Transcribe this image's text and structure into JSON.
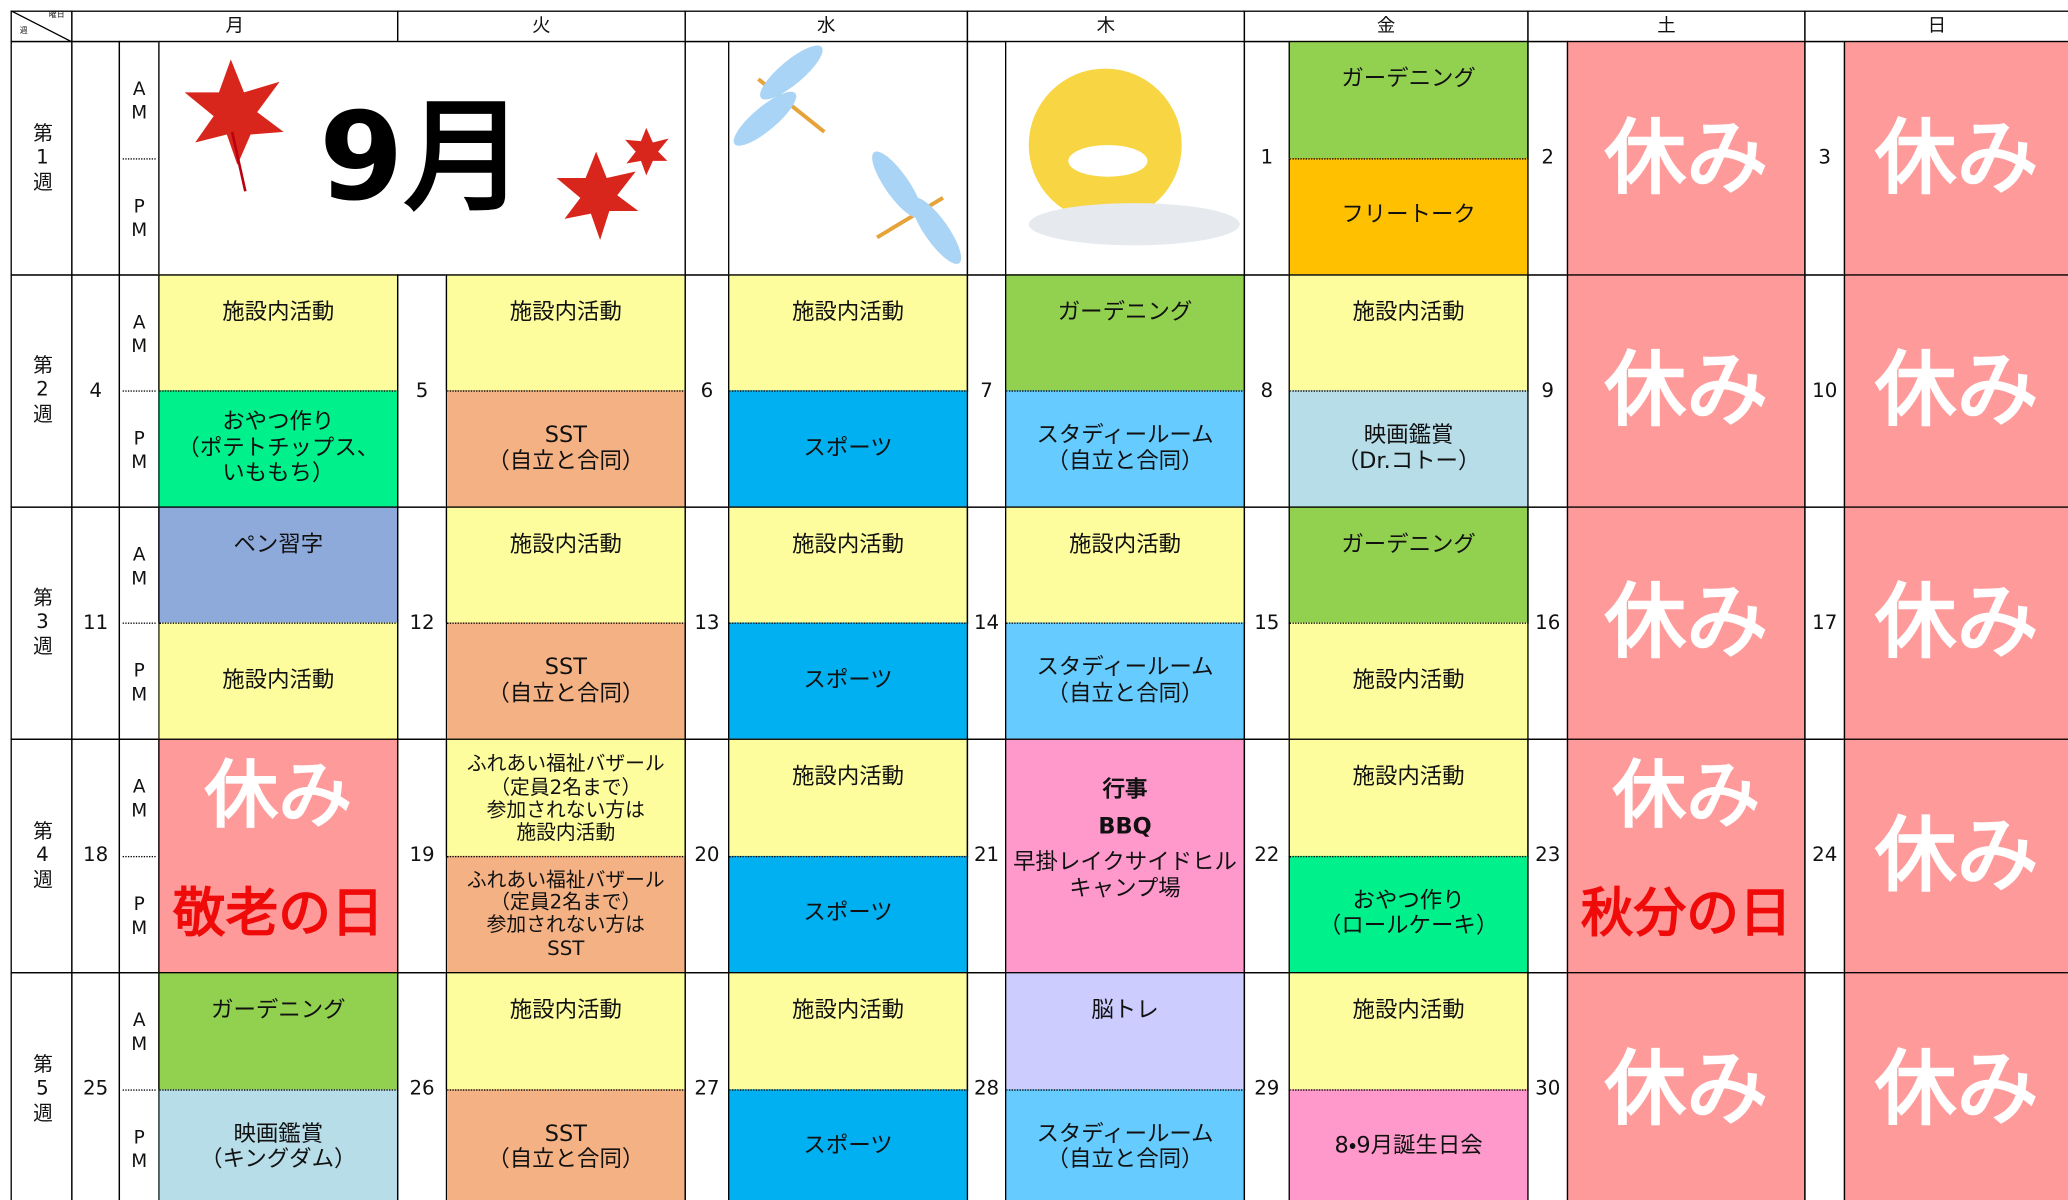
{
  "header": {
    "corner_day": "曜日",
    "corner_week": "週",
    "days": [
      "月",
      "火",
      "水",
      "木",
      "金",
      "土",
      "日"
    ]
  },
  "labels": {
    "am": "AM",
    "pm": "PM"
  },
  "weeks": [
    {
      "label": "第1週",
      "banner": "9月",
      "days": [
        null,
        null,
        null,
        null,
        {
          "day": 1,
          "am": {
            "text": "ガーデニング",
            "color": "#92d050"
          },
          "pm": {
            "text": "フリートーク",
            "color": "#ffc000"
          }
        },
        {
          "day": 2,
          "rest": "休み",
          "color": "#ff9a9a"
        },
        {
          "day": 3,
          "rest": "休み",
          "color": "#ff9a9a"
        }
      ]
    },
    {
      "label": "第2週",
      "days": [
        {
          "day": 4,
          "am": {
            "text": "施設内活動",
            "color": "#fdfd9e"
          },
          "pm": {
            "text": "おやつ作り\n（ポテトチップス、\nいももち）",
            "color": "#00f08c"
          }
        },
        {
          "day": 5,
          "am": {
            "text": "施設内活動",
            "color": "#fdfd9e"
          },
          "pm": {
            "text": "SST\n（自立と合同）",
            "color": "#f4b183"
          }
        },
        {
          "day": 6,
          "am": {
            "text": "施設内活動",
            "color": "#fdfd9e"
          },
          "pm": {
            "text": "スポーツ",
            "color": "#00b0f0"
          }
        },
        {
          "day": 7,
          "am": {
            "text": "ガーデニング",
            "color": "#92d050"
          },
          "pm": {
            "text": "スタディールーム\n（自立と合同）",
            "color": "#66ccff"
          }
        },
        {
          "day": 8,
          "am": {
            "text": "施設内活動",
            "color": "#fdfd9e"
          },
          "pm": {
            "text": "映画鑑賞\n（Dr.コトー）",
            "color": "#b7dde8"
          }
        },
        {
          "day": 9,
          "rest": "休み",
          "color": "#ff9a9a"
        },
        {
          "day": 10,
          "rest": "休み",
          "color": "#ff9a9a"
        }
      ]
    },
    {
      "label": "第3週",
      "days": [
        {
          "day": 11,
          "am": {
            "text": "ペン習字",
            "color": "#8eaadb"
          },
          "pm": {
            "text": "施設内活動",
            "color": "#fdfd9e"
          }
        },
        {
          "day": 12,
          "am": {
            "text": "施設内活動",
            "color": "#fdfd9e"
          },
          "pm": {
            "text": "SST\n（自立と合同）",
            "color": "#f4b183"
          }
        },
        {
          "day": 13,
          "am": {
            "text": "施設内活動",
            "color": "#fdfd9e"
          },
          "pm": {
            "text": "スポーツ",
            "color": "#00b0f0"
          }
        },
        {
          "day": 14,
          "am": {
            "text": "施設内活動",
            "color": "#fdfd9e"
          },
          "pm": {
            "text": "スタディールーム\n（自立と合同）",
            "color": "#66ccff"
          }
        },
        {
          "day": 15,
          "am": {
            "text": "ガーデニング",
            "color": "#92d050"
          },
          "pm": {
            "text": "施設内活動",
            "color": "#fdfd9e"
          }
        },
        {
          "day": 16,
          "rest": "休み",
          "color": "#ff9a9a"
        },
        {
          "day": 17,
          "rest": "休み",
          "color": "#ff9a9a"
        }
      ]
    },
    {
      "label": "第4週",
      "days": [
        {
          "day": 18,
          "rest": "休み",
          "holiday": "敬老の日",
          "color": "#ff9a9a"
        },
        {
          "day": 19,
          "am": {
            "text": "ふれあい福祉バザール\n（定員2名まで）\n参加されない方は\n施設内活動",
            "color": "#fdfd9e"
          },
          "pm": {
            "text": "ふれあい福祉バザール\n（定員2名まで）\n参加されない方は\nSST",
            "color": "#f4b183"
          }
        },
        {
          "day": 20,
          "am": {
            "text": "施設内活動",
            "color": "#fdfd9e"
          },
          "pm": {
            "text": "スポーツ",
            "color": "#00b0f0"
          }
        },
        {
          "day": 21,
          "event": [
            "行事",
            "BBQ",
            "早掛レイクサイドヒルキャンプ場"
          ],
          "color": "#ff99cc"
        },
        {
          "day": 22,
          "am": {
            "text": "施設内活動",
            "color": "#fdfd9e"
          },
          "pm": {
            "text": "おやつ作り\n（ロールケーキ）",
            "color": "#00f08c"
          }
        },
        {
          "day": 23,
          "rest": "休み",
          "holiday": "秋分の日",
          "color": "#ff9a9a"
        },
        {
          "day": 24,
          "rest": "休み",
          "color": "#ff9a9a"
        }
      ]
    },
    {
      "label": "第5週",
      "days": [
        {
          "day": 25,
          "am": {
            "text": "ガーデニング",
            "color": "#92d050"
          },
          "pm": {
            "text": "映画鑑賞\n（キングダム）",
            "color": "#b7dde8"
          }
        },
        {
          "day": 26,
          "am": {
            "text": "施設内活動",
            "color": "#fdfd9e"
          },
          "pm": {
            "text": "SST\n（自立と合同）",
            "color": "#f4b183"
          }
        },
        {
          "day": 27,
          "am": {
            "text": "施設内活動",
            "color": "#fdfd9e"
          },
          "pm": {
            "text": "スポーツ",
            "color": "#00b0f0"
          }
        },
        {
          "day": 28,
          "am": {
            "text": "脳トレ",
            "color": "#ccccff"
          },
          "pm": {
            "text": "スタディールーム\n（自立と合同）",
            "color": "#66ccff"
          }
        },
        {
          "day": 29,
          "am": {
            "text": "施設内活動",
            "color": "#fdfd9e"
          },
          "pm": {
            "text": "8・9月誕生日会",
            "color": "#ff99cc"
          }
        },
        {
          "day": 30,
          "rest": "休み",
          "color": "#ff9a9a"
        },
        {
          "rest": "休み",
          "color": "#ff9a9a"
        }
      ]
    }
  ]
}
